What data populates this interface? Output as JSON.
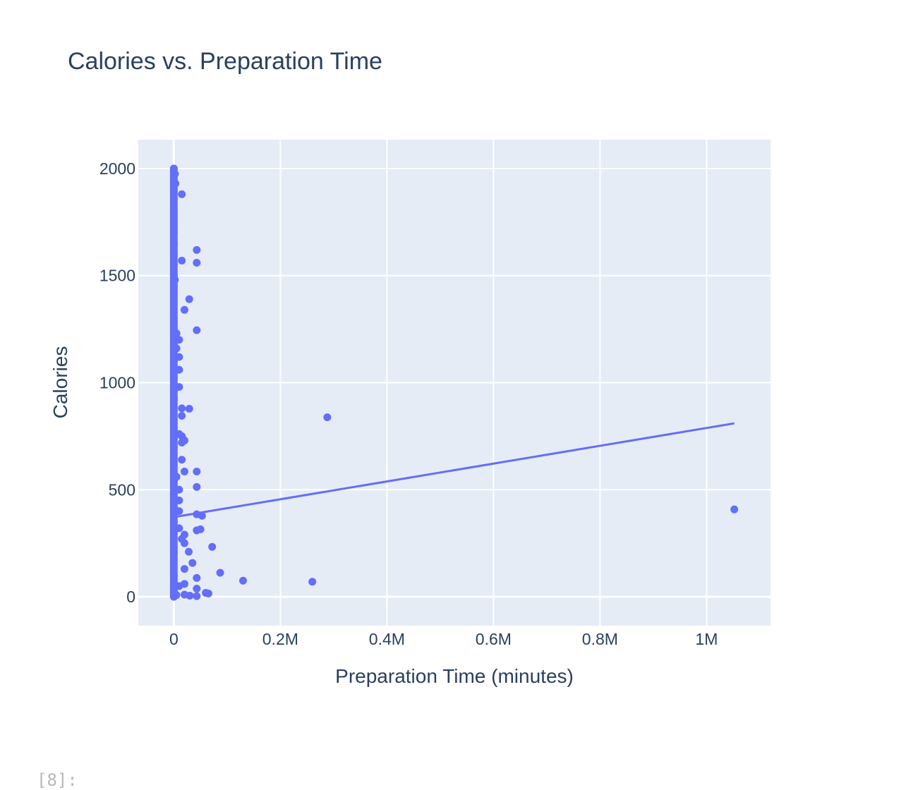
{
  "chart_data": {
    "type": "scatter",
    "title": "Calories vs. Preparation Time",
    "xlabel": "Preparation Time (minutes)",
    "ylabel": "Calories",
    "xlim": [
      -66667,
      1120000
    ],
    "ylim": [
      -135,
      2135
    ],
    "x_ticks": [
      {
        "value": 0,
        "label": "0"
      },
      {
        "value": 200000,
        "label": "0.2M"
      },
      {
        "value": 400000,
        "label": "0.4M"
      },
      {
        "value": 600000,
        "label": "0.6M"
      },
      {
        "value": 800000,
        "label": "0.8M"
      },
      {
        "value": 1000000,
        "label": "1M"
      }
    ],
    "y_ticks": [
      {
        "value": 0,
        "label": "0"
      },
      {
        "value": 500,
        "label": "500"
      },
      {
        "value": 1000,
        "label": "1000"
      },
      {
        "value": 1500,
        "label": "1500"
      },
      {
        "value": 2000,
        "label": "2000"
      }
    ],
    "grid": true,
    "colors": {
      "marker": "#636efa",
      "plot_bg": "#e5ecf6",
      "grid": "#ffffff",
      "text": "#2a3f5f"
    },
    "series": [
      {
        "type": "scatter",
        "points": [
          [
            0,
            2000
          ],
          [
            0,
            1950
          ],
          [
            2000,
            1975
          ],
          [
            0,
            1900
          ],
          [
            3000,
            1930
          ],
          [
            0,
            1860
          ],
          [
            15000,
            1880
          ],
          [
            0,
            1800
          ],
          [
            0,
            1750
          ],
          [
            0,
            1700
          ],
          [
            0,
            1650
          ],
          [
            0,
            1600
          ],
          [
            43000,
            1620
          ],
          [
            43000,
            1560
          ],
          [
            15000,
            1570
          ],
          [
            0,
            1550
          ],
          [
            0,
            1500
          ],
          [
            2000,
            1480
          ],
          [
            0,
            1450
          ],
          [
            0,
            1400
          ],
          [
            29000,
            1390
          ],
          [
            20000,
            1340
          ],
          [
            0,
            1330
          ],
          [
            0,
            1300
          ],
          [
            0,
            1250
          ],
          [
            43000,
            1245
          ],
          [
            5000,
            1230
          ],
          [
            10000,
            1200
          ],
          [
            0,
            1180
          ],
          [
            5000,
            1160
          ],
          [
            10000,
            1120
          ],
          [
            0,
            1100
          ],
          [
            10000,
            1060
          ],
          [
            0,
            1020
          ],
          [
            10000,
            980
          ],
          [
            0,
            960
          ],
          [
            0,
            920
          ],
          [
            15000,
            880
          ],
          [
            29000,
            878
          ],
          [
            15000,
            845
          ],
          [
            0,
            820
          ],
          [
            0,
            780
          ],
          [
            10000,
            760
          ],
          [
            15000,
            750
          ],
          [
            20000,
            730
          ],
          [
            15000,
            720
          ],
          [
            0,
            700
          ],
          [
            15000,
            640
          ],
          [
            0,
            620
          ],
          [
            20000,
            585
          ],
          [
            43000,
            585
          ],
          [
            5000,
            560
          ],
          [
            0,
            540
          ],
          [
            43000,
            513
          ],
          [
            10000,
            500
          ],
          [
            0,
            480
          ],
          [
            10000,
            450
          ],
          [
            0,
            420
          ],
          [
            10000,
            400
          ],
          [
            43000,
            385
          ],
          [
            53000,
            378
          ],
          [
            0,
            350
          ],
          [
            10000,
            320
          ],
          [
            43000,
            310
          ],
          [
            50000,
            315
          ],
          [
            20000,
            290
          ],
          [
            15000,
            270
          ],
          [
            20000,
            250
          ],
          [
            0,
            230
          ],
          [
            72000,
            233
          ],
          [
            28000,
            210
          ],
          [
            0,
            200
          ],
          [
            35000,
            158
          ],
          [
            20000,
            130
          ],
          [
            87000,
            112
          ],
          [
            0,
            100
          ],
          [
            43000,
            88
          ],
          [
            130000,
            75
          ],
          [
            260000,
            70
          ],
          [
            20000,
            60
          ],
          [
            10000,
            50
          ],
          [
            43000,
            38
          ],
          [
            0,
            30
          ],
          [
            60000,
            18
          ],
          [
            65000,
            15
          ],
          [
            20000,
            10
          ],
          [
            30000,
            5
          ],
          [
            43000,
            3
          ],
          [
            0,
            0
          ],
          [
            5000,
            8
          ],
          [
            288000,
            838
          ],
          [
            1052000,
            408
          ]
        ]
      },
      {
        "type": "line",
        "points": [
          [
            7000,
            375
          ],
          [
            1052000,
            810
          ]
        ]
      }
    ]
  },
  "cell_prompt": "[8]:"
}
